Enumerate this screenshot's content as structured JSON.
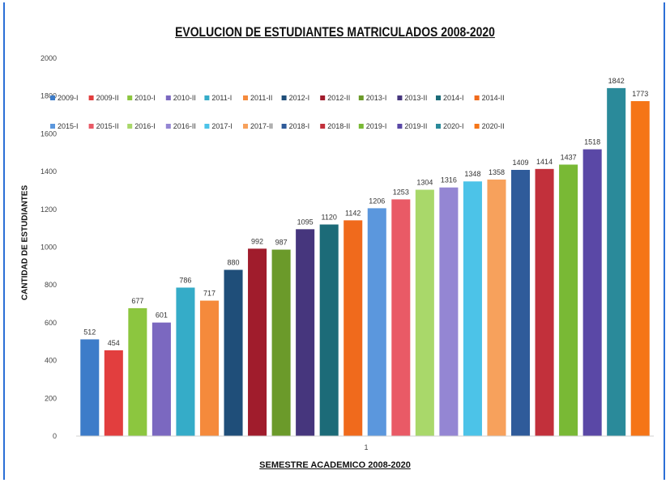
{
  "chart_data": {
    "type": "bar",
    "title": "EVOLUCION DE ESTUDIANTES MATRICULADOS 2008-2020",
    "xlabel": "SEMESTRE ACADEMICO  2008-2020",
    "ylabel": "CANTIDAD DE ESTUDIANTES",
    "categories": [
      "1"
    ],
    "ylim": [
      0,
      2000
    ],
    "yticks": [
      "0",
      "200",
      "400",
      "600",
      "800",
      "1000",
      "1200",
      "1400",
      "1600",
      "1800",
      "2000"
    ],
    "grid": false,
    "legend_position": "top",
    "series": [
      {
        "name": "2009-I",
        "values": [
          512
        ],
        "color": "#3d7cc9"
      },
      {
        "name": "2009-II",
        "values": [
          454
        ],
        "color": "#e23e3e"
      },
      {
        "name": "2010-I",
        "values": [
          677
        ],
        "color": "#8cc63f"
      },
      {
        "name": "2010-II",
        "values": [
          601
        ],
        "color": "#7b68c0"
      },
      {
        "name": "2011-I",
        "values": [
          786
        ],
        "color": "#35acc8"
      },
      {
        "name": "2011-II",
        "values": [
          717
        ],
        "color": "#f58a3c"
      },
      {
        "name": "2012-I",
        "values": [
          880
        ],
        "color": "#1f4e79"
      },
      {
        "name": "2012-II",
        "values": [
          992
        ],
        "color": "#a01c2c"
      },
      {
        "name": "2013-I",
        "values": [
          987
        ],
        "color": "#6b9a2a"
      },
      {
        "name": "2013-II",
        "values": [
          1095
        ],
        "color": "#46367d"
      },
      {
        "name": "2014-I",
        "values": [
          1120
        ],
        "color": "#1c6b78"
      },
      {
        "name": "2014-II",
        "values": [
          1142
        ],
        "color": "#f06a1c"
      },
      {
        "name": "2015-I",
        "values": [
          1206
        ],
        "color": "#5b97dd"
      },
      {
        "name": "2015-II",
        "values": [
          1253
        ],
        "color": "#e95a66"
      },
      {
        "name": "2016-I",
        "values": [
          1304
        ],
        "color": "#a9d86a"
      },
      {
        "name": "2016-II",
        "values": [
          1316
        ],
        "color": "#9486d3"
      },
      {
        "name": "2017-I",
        "values": [
          1348
        ],
        "color": "#4cc3e8"
      },
      {
        "name": "2017-II",
        "values": [
          1358
        ],
        "color": "#f7a15c"
      },
      {
        "name": "2018-I",
        "values": [
          1409
        ],
        "color": "#2f5b9a"
      },
      {
        "name": "2018-II",
        "values": [
          1414
        ],
        "color": "#c2303b"
      },
      {
        "name": "2019-I",
        "values": [
          1437
        ],
        "color": "#79b935"
      },
      {
        "name": "2019-II",
        "values": [
          1518
        ],
        "color": "#5a48a6"
      },
      {
        "name": "2020-I",
        "values": [
          1842
        ],
        "color": "#2a8a9a"
      },
      {
        "name": "2020-II",
        "values": [
          1773
        ],
        "color": "#f57517"
      }
    ],
    "value_labels": [
      "512",
      "454",
      "677",
      "601",
      "786",
      "717",
      "880",
      "992",
      "987",
      "1095",
      "1120",
      "1142",
      "1206",
      "1253",
      "1304",
      "1316",
      "1348",
      "1358",
      "1409",
      "1414",
      "1437",
      "1518",
      "1842",
      "1773"
    ]
  }
}
